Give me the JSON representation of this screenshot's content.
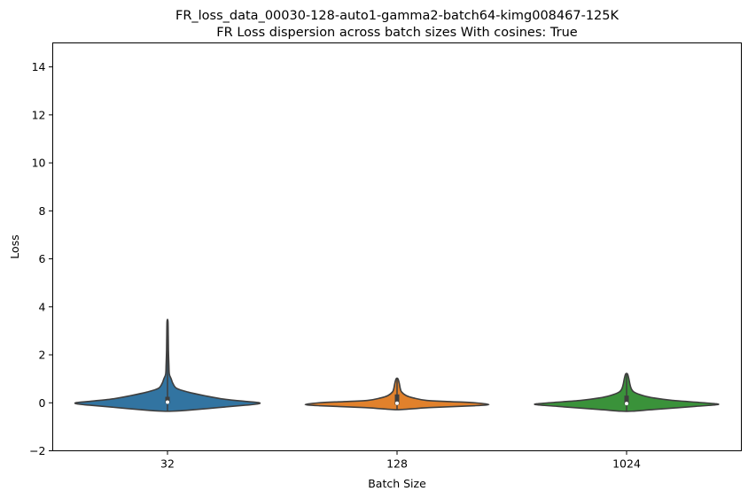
{
  "chart_data": {
    "type": "violin",
    "title": "FR_loss_data_00030-128-auto1-gamma2-batch64-kimg008467-125K",
    "subtitle": "FR Loss dispersion across batch sizes With cosines: True",
    "xlabel": "Batch Size",
    "ylabel": "Loss",
    "ylim": [
      -2,
      15
    ],
    "yticks": [
      "−2",
      "0",
      "2",
      "4",
      "6",
      "8",
      "10",
      "12",
      "14"
    ],
    "yticks_values": [
      -2,
      0,
      2,
      4,
      6,
      8,
      10,
      12,
      14
    ],
    "grid": false,
    "categories": [
      "32",
      "128",
      "1024"
    ],
    "colors": [
      "#3274a1",
      "#e1812c",
      "#3a923a"
    ],
    "violins": [
      {
        "category": "32",
        "min": -0.35,
        "max": 3.4,
        "q1": -0.02,
        "median": 0.03,
        "q3": 0.25,
        "profile": [
          [
            -0.35,
            0.05
          ],
          [
            -0.3,
            0.25
          ],
          [
            -0.2,
            0.55
          ],
          [
            -0.1,
            0.85
          ],
          [
            -0.05,
            0.98
          ],
          [
            0,
            1.0
          ],
          [
            0.05,
            0.88
          ],
          [
            0.15,
            0.62
          ],
          [
            0.3,
            0.4
          ],
          [
            0.45,
            0.22
          ],
          [
            0.6,
            0.1
          ],
          [
            0.8,
            0.06
          ],
          [
            1.0,
            0.04
          ],
          [
            1.2,
            0.02
          ],
          [
            1.6,
            0.015
          ],
          [
            2.2,
            0.01
          ],
          [
            2.8,
            0.008
          ],
          [
            3.4,
            0.005
          ]
        ]
      },
      {
        "category": "128",
        "min": -0.28,
        "max": 1.0,
        "q1": -0.08,
        "median": -0.02,
        "q3": 0.35,
        "profile": [
          [
            -0.28,
            0.06
          ],
          [
            -0.2,
            0.35
          ],
          [
            -0.12,
            0.85
          ],
          [
            -0.07,
            1.0
          ],
          [
            0,
            0.85
          ],
          [
            0.05,
            0.58
          ],
          [
            0.1,
            0.32
          ],
          [
            0.2,
            0.18
          ],
          [
            0.3,
            0.1
          ],
          [
            0.45,
            0.05
          ],
          [
            0.6,
            0.035
          ],
          [
            0.8,
            0.025
          ],
          [
            1.0,
            0.01
          ]
        ]
      },
      {
        "category": "1024",
        "min": -0.35,
        "max": 1.2,
        "q1": -0.08,
        "median": -0.03,
        "q3": 0.3,
        "profile": [
          [
            -0.35,
            0.06
          ],
          [
            -0.28,
            0.3
          ],
          [
            -0.15,
            0.75
          ],
          [
            -0.07,
            1.0
          ],
          [
            0,
            0.85
          ],
          [
            0.1,
            0.5
          ],
          [
            0.2,
            0.3
          ],
          [
            0.3,
            0.18
          ],
          [
            0.45,
            0.08
          ],
          [
            0.6,
            0.05
          ],
          [
            0.8,
            0.035
          ],
          [
            1.0,
            0.025
          ],
          [
            1.2,
            0.01
          ]
        ]
      }
    ]
  }
}
